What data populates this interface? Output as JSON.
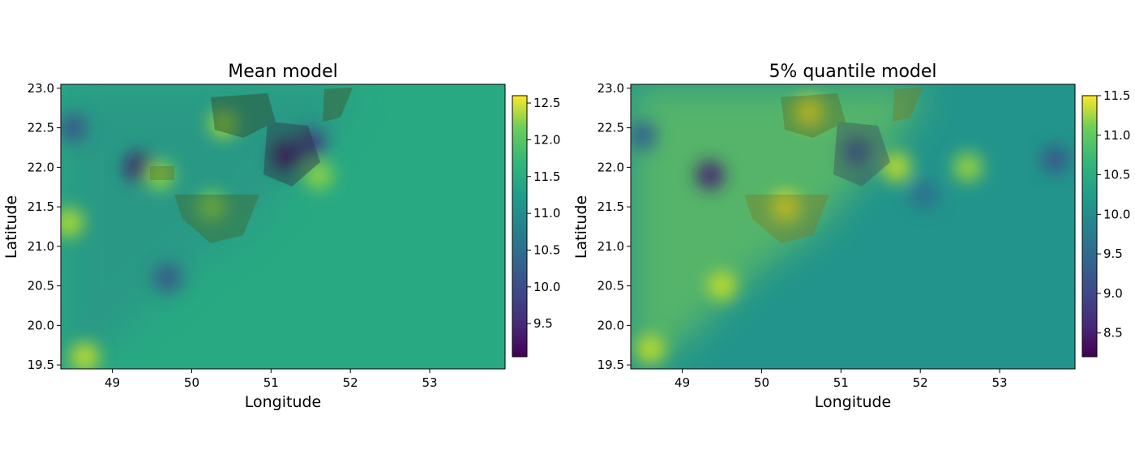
{
  "chart_data": [
    {
      "type": "heatmap",
      "title": "Mean model",
      "xlabel": "Longitude",
      "ylabel": "Latitude",
      "xlim": [
        48.35,
        53.95
      ],
      "ylim": [
        19.45,
        23.05
      ],
      "xticks": [
        "49",
        "50",
        "51",
        "52",
        "53"
      ],
      "yticks": [
        "19.5",
        "20.0",
        "20.5",
        "21.0",
        "21.5",
        "22.0",
        "22.5",
        "23.0"
      ],
      "colormap": "viridis",
      "colorbar": {
        "range": [
          9.05,
          12.6
        ],
        "ticks": [
          "9.5",
          "10.0",
          "10.5",
          "11.0",
          "11.5",
          "12.0",
          "12.5"
        ],
        "position": "right"
      },
      "background_value": 11.2,
      "hotspots": [
        {
          "x": 51.2,
          "y": 22.15,
          "value": 9.1
        },
        {
          "x": 49.35,
          "y": 22.0,
          "value": 9.2
        },
        {
          "x": 51.5,
          "y": 22.3,
          "value": 9.6
        },
        {
          "x": 48.5,
          "y": 22.5,
          "value": 10.0
        },
        {
          "x": 49.7,
          "y": 20.6,
          "value": 10.0
        },
        {
          "x": 50.4,
          "y": 22.55,
          "value": 12.1
        },
        {
          "x": 49.6,
          "y": 21.9,
          "value": 12.0
        },
        {
          "x": 50.25,
          "y": 21.5,
          "value": 12.0
        },
        {
          "x": 48.45,
          "y": 21.3,
          "value": 12.2
        },
        {
          "x": 48.65,
          "y": 19.6,
          "value": 12.3
        },
        {
          "x": 51.6,
          "y": 21.9,
          "value": 12.0
        }
      ]
    },
    {
      "type": "heatmap",
      "title": "5% quantile model",
      "xlabel": "Longitude",
      "ylabel": "Latitude",
      "xlim": [
        48.35,
        53.95
      ],
      "ylim": [
        19.45,
        23.05
      ],
      "xticks": [
        "49",
        "50",
        "51",
        "52",
        "53"
      ],
      "yticks": [
        "19.5",
        "20.0",
        "20.5",
        "21.0",
        "21.5",
        "22.0",
        "22.5",
        "23.0"
      ],
      "colormap": "viridis",
      "colorbar": {
        "range": [
          8.2,
          11.5
        ],
        "ticks": [
          "8.5",
          "9.0",
          "9.5",
          "10.0",
          "10.5",
          "11.0",
          "11.5"
        ],
        "position": "right"
      },
      "background_value": 9.9,
      "hotspots": [
        {
          "x": 50.6,
          "y": 22.7,
          "value": 11.5
        },
        {
          "x": 50.3,
          "y": 21.5,
          "value": 11.4
        },
        {
          "x": 49.5,
          "y": 20.5,
          "value": 11.2
        },
        {
          "x": 48.6,
          "y": 19.7,
          "value": 11.2
        },
        {
          "x": 51.7,
          "y": 22.0,
          "value": 11.2
        },
        {
          "x": 52.6,
          "y": 22.0,
          "value": 11.0
        },
        {
          "x": 49.35,
          "y": 21.9,
          "value": 8.5
        },
        {
          "x": 51.2,
          "y": 22.2,
          "value": 9.0
        },
        {
          "x": 48.5,
          "y": 22.4,
          "value": 9.2
        },
        {
          "x": 53.7,
          "y": 22.1,
          "value": 9.1
        },
        {
          "x": 52.05,
          "y": 21.65,
          "value": 9.4
        }
      ]
    }
  ]
}
